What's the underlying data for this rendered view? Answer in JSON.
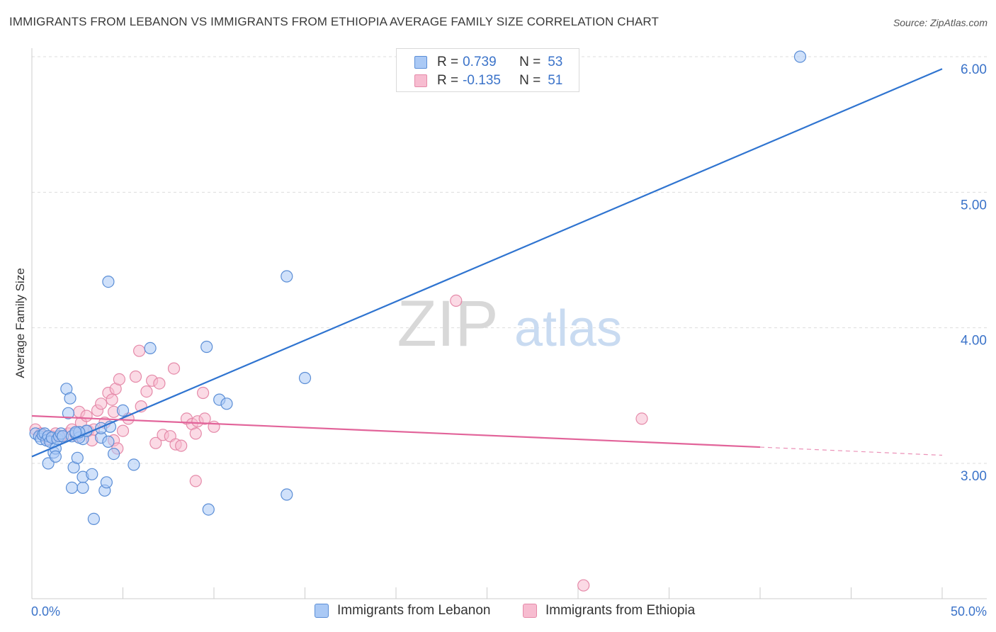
{
  "title": "IMMIGRANTS FROM LEBANON VS IMMIGRANTS FROM ETHIOPIA AVERAGE FAMILY SIZE CORRELATION CHART",
  "source": "Source: ZipAtlas.com",
  "watermark": {
    "zip": "ZIP",
    "atlas": "atlas"
  },
  "colors": {
    "lebanon_fill": "#aac9f5",
    "lebanon_stroke": "#5b8ed6",
    "lebanon_line": "#2f74d0",
    "ethiopia_fill": "#f7bcd0",
    "ethiopia_stroke": "#e58aa9",
    "ethiopia_line": "#e2649a",
    "axis_label": "#3b73c9",
    "grid": "#dddddd"
  },
  "stats_legend": {
    "rows": [
      {
        "r_label": "R =",
        "r_value": "0.739",
        "n_label": "N =",
        "n_value": "53",
        "series": "lebanon"
      },
      {
        "r_label": "R =",
        "r_value": "-0.135",
        "n_label": "N =",
        "n_value": "51",
        "series": "ethiopia"
      }
    ]
  },
  "bottom_legend": {
    "lebanon": "Immigrants from Lebanon",
    "ethiopia": "Immigrants from Ethiopia"
  },
  "chart_data": {
    "type": "scatter",
    "title": "IMMIGRANTS FROM LEBANON VS IMMIGRANTS FROM ETHIOPIA AVERAGE FAMILY SIZE CORRELATION CHART",
    "xlabel": "",
    "ylabel": "Average Family Size",
    "xlim": [
      0,
      50
    ],
    "ylim": [
      2.0,
      6.1
    ],
    "x_tick_labels": {
      "left": "0.0%",
      "right": "50.0%"
    },
    "y_ticks": [
      3.0,
      4.0,
      5.0,
      6.0
    ],
    "y_tick_labels": [
      "3.00",
      "4.00",
      "5.00",
      "6.00"
    ],
    "grid": true,
    "legend_position": "top-center",
    "series": [
      {
        "name": "Immigrants from Lebanon",
        "key": "lebanon",
        "trend": {
          "x": [
            0,
            50
          ],
          "y": [
            3.05,
            5.91
          ]
        },
        "points": [
          [
            0.2,
            3.22
          ],
          [
            0.4,
            3.2
          ],
          [
            0.5,
            3.18
          ],
          [
            0.6,
            3.21
          ],
          [
            0.7,
            3.22
          ],
          [
            0.8,
            3.17
          ],
          [
            0.9,
            3.2
          ],
          [
            1.0,
            3.16
          ],
          [
            1.1,
            3.19
          ],
          [
            1.2,
            3.08
          ],
          [
            1.3,
            3.11
          ],
          [
            1.4,
            3.18
          ],
          [
            1.5,
            3.2
          ],
          [
            1.6,
            3.22
          ],
          [
            1.7,
            3.2
          ],
          [
            1.9,
            3.55
          ],
          [
            2.0,
            3.37
          ],
          [
            2.1,
            3.48
          ],
          [
            2.2,
            3.2
          ],
          [
            2.3,
            2.97
          ],
          [
            2.4,
            3.22
          ],
          [
            2.6,
            3.23
          ],
          [
            2.8,
            3.18
          ],
          [
            3.0,
            3.24
          ],
          [
            0.9,
            3.0
          ],
          [
            1.3,
            3.05
          ],
          [
            2.2,
            2.82
          ],
          [
            2.8,
            2.82
          ],
          [
            2.8,
            2.9
          ],
          [
            2.5,
            3.04
          ],
          [
            2.6,
            3.19
          ],
          [
            3.0,
            3.24
          ],
          [
            2.6,
            3.23
          ],
          [
            3.4,
            2.59
          ],
          [
            2.4,
            3.23
          ],
          [
            3.8,
            3.19
          ],
          [
            3.8,
            3.26
          ],
          [
            4.3,
            3.27
          ],
          [
            3.3,
            2.92
          ],
          [
            4.0,
            2.8
          ],
          [
            4.1,
            2.86
          ],
          [
            4.2,
            3.16
          ],
          [
            4.5,
            3.07
          ],
          [
            5.0,
            3.39
          ],
          [
            5.6,
            2.99
          ],
          [
            4.2,
            4.34
          ],
          [
            6.5,
            3.85
          ],
          [
            9.6,
            3.86
          ],
          [
            10.3,
            3.47
          ],
          [
            10.7,
            3.44
          ],
          [
            9.7,
            2.66
          ],
          [
            14.0,
            4.38
          ],
          [
            15.0,
            3.63
          ],
          [
            14.0,
            2.77
          ],
          [
            42.2,
            6.0
          ]
        ]
      },
      {
        "name": "Immigrants from Ethiopia",
        "key": "ethiopia",
        "trend": {
          "x": [
            0,
            40
          ],
          "y": [
            3.35,
            3.12
          ],
          "dash_to": {
            "x": 50,
            "y": 3.06
          }
        },
        "points": [
          [
            0.2,
            3.25
          ],
          [
            0.5,
            3.22
          ],
          [
            0.7,
            3.2
          ],
          [
            0.9,
            3.18
          ],
          [
            1.1,
            3.2
          ],
          [
            1.3,
            3.22
          ],
          [
            1.6,
            3.2
          ],
          [
            2.0,
            3.22
          ],
          [
            2.2,
            3.25
          ],
          [
            2.5,
            3.2
          ],
          [
            2.6,
            3.38
          ],
          [
            2.7,
            3.3
          ],
          [
            3.0,
            3.35
          ],
          [
            3.1,
            3.24
          ],
          [
            3.3,
            3.17
          ],
          [
            3.4,
            3.25
          ],
          [
            3.6,
            3.39
          ],
          [
            3.8,
            3.44
          ],
          [
            4.0,
            3.3
          ],
          [
            4.2,
            3.52
          ],
          [
            4.4,
            3.47
          ],
          [
            4.6,
            3.55
          ],
          [
            4.8,
            3.62
          ],
          [
            4.5,
            3.17
          ],
          [
            4.5,
            3.38
          ],
          [
            5.0,
            3.24
          ],
          [
            4.7,
            3.11
          ],
          [
            5.3,
            3.33
          ],
          [
            5.7,
            3.64
          ],
          [
            5.9,
            3.83
          ],
          [
            6.0,
            3.42
          ],
          [
            6.3,
            3.53
          ],
          [
            6.6,
            3.61
          ],
          [
            6.8,
            3.15
          ],
          [
            7.0,
            3.59
          ],
          [
            7.2,
            3.21
          ],
          [
            7.6,
            3.2
          ],
          [
            7.9,
            3.14
          ],
          [
            8.2,
            3.13
          ],
          [
            8.5,
            3.33
          ],
          [
            8.8,
            3.29
          ],
          [
            9.0,
            3.22
          ],
          [
            9.4,
            3.52
          ],
          [
            9.1,
            3.31
          ],
          [
            9.5,
            3.33
          ],
          [
            10.0,
            3.27
          ],
          [
            9.0,
            2.87
          ],
          [
            7.8,
            3.7
          ],
          [
            23.3,
            4.2
          ],
          [
            33.5,
            3.33
          ],
          [
            30.3,
            2.1
          ]
        ]
      }
    ]
  }
}
